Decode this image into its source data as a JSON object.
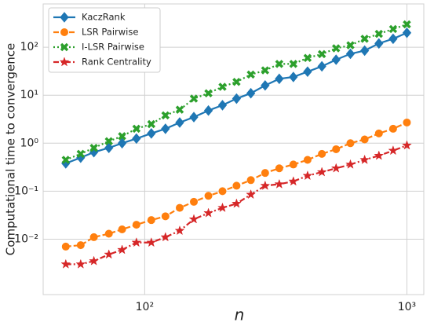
{
  "chart_data": {
    "type": "line",
    "xscale": "log",
    "yscale": "log",
    "grid": true,
    "legend": "upper left",
    "xlabel": "n",
    "ylabel": "Computational time to convergence",
    "xlim": [
      41,
      1160
    ],
    "ylim": [
      0.0007,
      800
    ],
    "xticks": [
      {
        "value": 100,
        "label": "10²"
      },
      {
        "value": 1000,
        "label": "10³"
      }
    ],
    "yticks": [
      {
        "value": 0.01,
        "label": "10⁻²"
      },
      {
        "value": 0.1,
        "label": "10⁻¹"
      },
      {
        "value": 1,
        "label": "10⁰"
      },
      {
        "value": 10,
        "label": "10¹"
      },
      {
        "value": 100,
        "label": "10²"
      }
    ],
    "x": [
      50,
      57,
      64,
      73,
      82,
      93,
      106,
      120,
      136,
      154,
      175,
      198,
      224,
      254,
      288,
      326,
      369,
      418,
      474,
      537,
      609,
      690,
      782,
      886,
      1000
    ],
    "series": [
      {
        "name": "KaczRank",
        "color": "#1f77b4",
        "dash": "solid",
        "marker": "diamond",
        "values": [
          0.38,
          0.5,
          0.65,
          0.8,
          1.0,
          1.25,
          1.6,
          2.0,
          2.7,
          3.5,
          4.8,
          6.2,
          8.5,
          11,
          16,
          22,
          24,
          31,
          40,
          55,
          73,
          85,
          120,
          150,
          200
        ]
      },
      {
        "name": "LSR Pairwise",
        "color": "#ff7f0e",
        "dash": "dashed",
        "marker": "circle",
        "values": [
          0.007,
          0.0075,
          0.011,
          0.013,
          0.016,
          0.02,
          0.025,
          0.03,
          0.045,
          0.06,
          0.08,
          0.1,
          0.13,
          0.17,
          0.24,
          0.3,
          0.36,
          0.45,
          0.6,
          0.75,
          1.0,
          1.2,
          1.6,
          2.0,
          2.7
        ]
      },
      {
        "name": "I-LSR Pairwise",
        "color": "#2ca02c",
        "dash": "dotted",
        "marker": "x",
        "values": [
          0.45,
          0.6,
          0.8,
          1.1,
          1.4,
          2.0,
          2.5,
          3.8,
          5,
          8.5,
          11,
          15,
          19,
          27,
          33,
          45,
          45,
          60,
          72,
          95,
          110,
          150,
          190,
          240,
          300
        ]
      },
      {
        "name": "Rank Centrality",
        "color": "#d62728",
        "dash": "dashdot",
        "marker": "star",
        "values": [
          0.003,
          0.003,
          0.0035,
          0.0048,
          0.006,
          0.0085,
          0.0085,
          0.011,
          0.015,
          0.026,
          0.035,
          0.045,
          0.055,
          0.085,
          0.13,
          0.14,
          0.16,
          0.21,
          0.25,
          0.3,
          0.36,
          0.45,
          0.55,
          0.7,
          0.9
        ]
      }
    ]
  }
}
